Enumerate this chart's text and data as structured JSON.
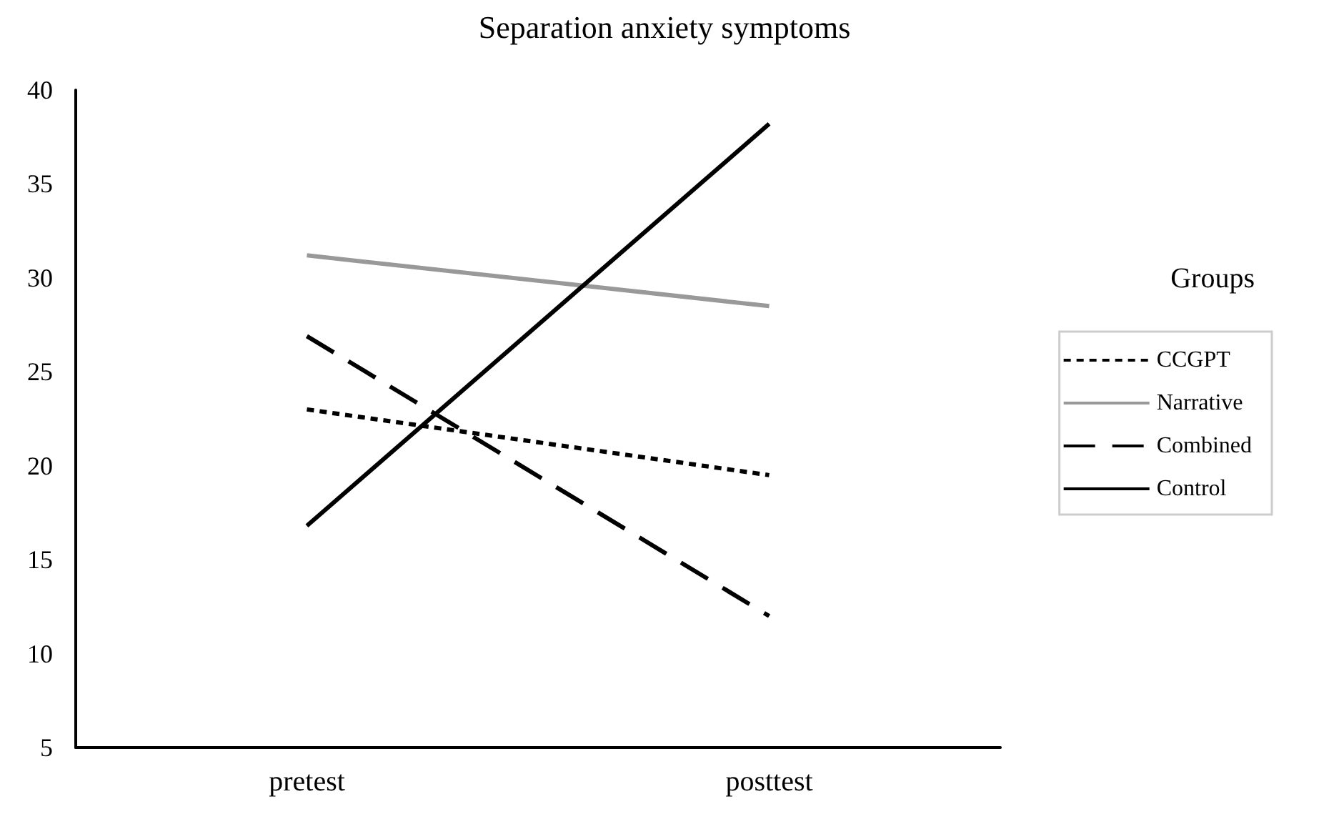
{
  "chart_data": {
    "type": "line",
    "title": "Separation anxiety symptoms",
    "legend_title": "Groups",
    "categories": [
      "pretest",
      "posttest"
    ],
    "series": [
      {
        "name": "CCGPT",
        "color": "#000000",
        "line_style": "dotted",
        "values": [
          23.0,
          19.5
        ]
      },
      {
        "name": "Narrative",
        "color": "#999999",
        "line_style": "solid",
        "values": [
          31.2,
          28.5
        ]
      },
      {
        "name": "Combined",
        "color": "#000000",
        "line_style": "dashed",
        "values": [
          26.9,
          12.0
        ]
      },
      {
        "name": "Control",
        "color": "#000000",
        "line_style": "solid",
        "values": [
          16.8,
          38.2
        ]
      }
    ],
    "ylim": [
      5,
      40
    ],
    "yticks": [
      5,
      10,
      15,
      20,
      25,
      30,
      35,
      40
    ],
    "grid": false,
    "legend": "right",
    "marker": "none"
  }
}
